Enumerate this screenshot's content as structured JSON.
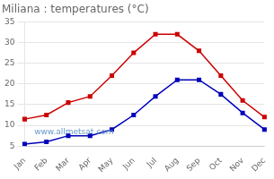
{
  "chart_data": {
    "type": "line",
    "title": "Miliana : temperatures (°C)",
    "categories": [
      "Jan",
      "Feb",
      "Mar",
      "Apr",
      "May",
      "Jun",
      "Jul",
      "Aug",
      "Sep",
      "Oct",
      "Nov",
      "Dec"
    ],
    "series": [
      {
        "color": "#cc0000",
        "marker": "square",
        "line_style": "solid",
        "values": [
          11.5,
          12.5,
          15.5,
          17.0,
          22.0,
          27.5,
          32.0,
          32.0,
          28.0,
          22.0,
          16.0,
          12.0
        ]
      },
      {
        "color": "#0000bb",
        "marker": "square",
        "line_style": "solid",
        "values": [
          5.5,
          6.0,
          7.5,
          7.5,
          9.0,
          12.5,
          17.0,
          21.0,
          21.0,
          17.5,
          13.0,
          9.0
        ]
      }
    ],
    "ylim": [
      5,
      35
    ],
    "yticks": [
      5,
      10,
      15,
      20,
      25,
      30,
      35
    ],
    "grid": "y",
    "annotations": [
      {
        "text": "www.allmetsat.com",
        "color": "#6699cc"
      }
    ]
  }
}
